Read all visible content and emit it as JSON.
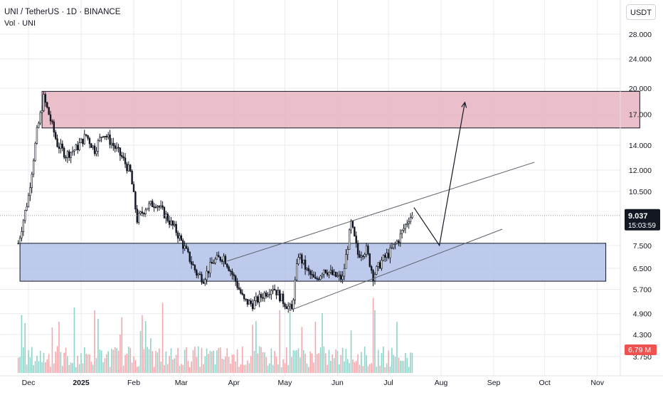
{
  "legend": {
    "symbol": "UNI / TetherUS · 1D · BINANCE",
    "volume": "Vol · UNI"
  },
  "currency_button": "USDT",
  "colors": {
    "up": "#26a69a",
    "down": "#131722",
    "candle": "#131722",
    "volume_up": "#8fd3c9",
    "volume_down": "#f4a8ad",
    "resistance_zone_fill": "#e8b4c0",
    "support_zone_fill": "#b3c1e8",
    "grid": "#e9eaed",
    "last_price_bg": "#131722",
    "volume_label_bg": "#ef5350"
  },
  "chart_data": {
    "type": "candlestick",
    "scale": "log",
    "x_ticks": [
      "Dec",
      "2025",
      "Feb",
      "Mar",
      "Apr",
      "May",
      "Jun",
      "Jul",
      "Aug",
      "Sep",
      "Oct",
      "Nov"
    ],
    "y_ticks": [
      "28.000",
      "24.000",
      "20.000",
      "17.000",
      "14.000",
      "12.000",
      "10.500",
      "9.037",
      "7.500",
      "6.500",
      "5.700",
      "4.900",
      "4.300",
      "3.750"
    ],
    "y_tick_values": [
      28,
      24,
      20,
      17,
      14,
      12,
      10.5,
      7.5,
      6.5,
      5.7,
      4.9,
      4.3,
      3.75
    ],
    "last_price": "9.037",
    "countdown": "15:03:59",
    "volume_label": "6.79 M",
    "price_path": [
      [
        "2024-11-25",
        7.6
      ],
      [
        "2024-12-01",
        10.2
      ],
      [
        "2024-12-06",
        15.2
      ],
      [
        "2024-12-10",
        18.8
      ],
      [
        "2024-12-13",
        17.0
      ],
      [
        "2024-12-18",
        14.1
      ],
      [
        "2024-12-23",
        13.2
      ],
      [
        "2024-12-29",
        13.7
      ],
      [
        "2025-01-04",
        14.9
      ],
      [
        "2025-01-09",
        13.6
      ],
      [
        "2025-01-14",
        15.2
      ],
      [
        "2025-01-20",
        14.0
      ],
      [
        "2025-01-25",
        13.0
      ],
      [
        "2025-01-30",
        11.8
      ],
      [
        "2025-02-03",
        8.8
      ],
      [
        "2025-02-08",
        9.5
      ],
      [
        "2025-02-14",
        9.8
      ],
      [
        "2025-02-20",
        9.0
      ],
      [
        "2025-02-26",
        8.2
      ],
      [
        "2025-03-04",
        7.2
      ],
      [
        "2025-03-10",
        6.3
      ],
      [
        "2025-03-14",
        6.1
      ],
      [
        "2025-03-20",
        6.8
      ],
      [
        "2025-03-26",
        7.0
      ],
      [
        "2025-04-02",
        6.0
      ],
      [
        "2025-04-07",
        5.3
      ],
      [
        "2025-04-12",
        5.2
      ],
      [
        "2025-04-18",
        5.5
      ],
      [
        "2025-04-24",
        5.8
      ],
      [
        "2025-04-30",
        5.3
      ],
      [
        "2025-05-05",
        5.0
      ],
      [
        "2025-05-09",
        7.1
      ],
      [
        "2025-05-14",
        6.4
      ],
      [
        "2025-05-19",
        6.0
      ],
      [
        "2025-05-24",
        6.5
      ],
      [
        "2025-05-30",
        6.2
      ],
      [
        "2025-06-04",
        6.1
      ],
      [
        "2025-06-09",
        8.6
      ],
      [
        "2025-06-13",
        7.1
      ],
      [
        "2025-06-18",
        7.3
      ],
      [
        "2025-06-22",
        6.2
      ],
      [
        "2025-06-27",
        6.8
      ],
      [
        "2025-07-02",
        7.2
      ],
      [
        "2025-07-07",
        7.8
      ],
      [
        "2025-07-13",
        8.9
      ],
      [
        "2025-07-15",
        9.04
      ]
    ],
    "zones": [
      {
        "name": "resistance",
        "from": "2024-12-09",
        "to": "2025-11-26",
        "y_high": 19.6,
        "y_low": 15.6
      },
      {
        "name": "support",
        "from": "2024-11-26",
        "to": "2025-11-06",
        "y_high": 7.6,
        "y_low": 6.0
      }
    ],
    "channel": {
      "upper": [
        [
          "2025-03-28",
          6.8
        ],
        [
          "2025-09-25",
          12.6
        ]
      ],
      "lower": [
        [
          "2025-05-04",
          5.0
        ],
        [
          "2025-09-06",
          8.3
        ]
      ]
    },
    "projection": [
      [
        "2025-07-16",
        9.5
      ],
      [
        "2025-07-31",
        7.5
      ],
      [
        "2025-08-15",
        18.3
      ]
    ]
  }
}
